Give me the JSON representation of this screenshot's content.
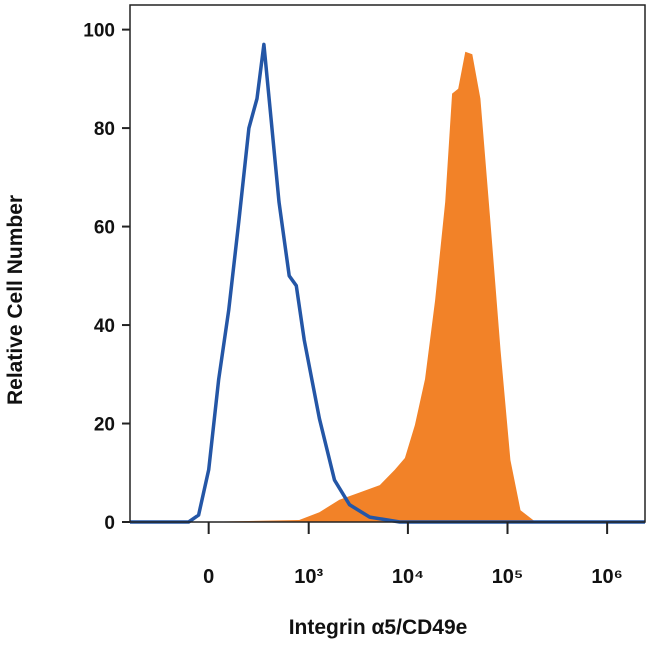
{
  "chart_data": {
    "type": "histogram-overlay",
    "xlabel": "Integrin α5/CD49e",
    "ylabel": "Relative Cell Number",
    "xscale": "biexponential",
    "xlim": [
      -600,
      2400000
    ],
    "xticks": [
      0,
      {
        "value": 1000,
        "label": "10³"
      },
      {
        "value": 10000,
        "label": "10⁴"
      },
      {
        "value": 100000,
        "label": "10⁵"
      },
      {
        "value": 1000000,
        "label": "10⁶"
      }
    ],
    "ylim": [
      0,
      105
    ],
    "yticks": [
      0,
      20,
      40,
      60,
      80,
      100
    ],
    "series": [
      {
        "color": "#f28228",
        "fill": true,
        "x": [
          -47,
          798,
          1284,
          2050,
          3270,
          5220,
          7390,
          9330,
          11760,
          14840,
          18740,
          23660,
          27800,
          32000,
          37700,
          44300,
          53400,
          67400,
          85000,
          107000,
          135000,
          192000
        ],
        "values": [
          0,
          0.4,
          2,
          4.5,
          6,
          7.5,
          10.6,
          13,
          19.7,
          29,
          45,
          65,
          87,
          88,
          95.5,
          95,
          86,
          61,
          35,
          12.6,
          2.4,
          0
        ]
      },
      {
        "color": "#2456a6",
        "fill": false,
        "x": [
          -600,
          -96,
          -47,
          0,
          47,
          96,
          151,
          214,
          273,
          331,
          399,
          489,
          628,
          744,
          900,
          1284,
          1828,
          2592,
          4130,
          8300,
          2400000
        ],
        "values": [
          0,
          0,
          1.4,
          10.6,
          29,
          43,
          61,
          80,
          86,
          97,
          82,
          65,
          50,
          48,
          37,
          21,
          8.5,
          3.5,
          1,
          0,
          0
        ]
      }
    ]
  }
}
